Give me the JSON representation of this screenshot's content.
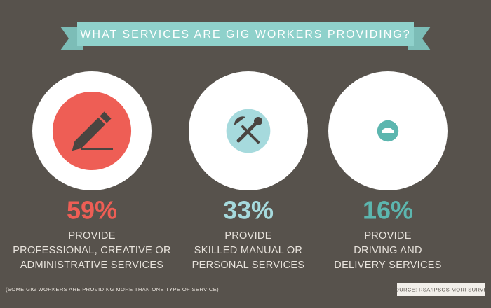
{
  "chart_data": {
    "type": "bubble",
    "title": "WHAT SERVICES ARE GIG WORKERS PROVIDING?",
    "categories": [
      [
        "PROVIDE",
        "PROFESSIONAL, CREATIVE OR",
        "ADMINISTRATIVE SERVICES"
      ],
      [
        "PROVIDE",
        "SKILLED MANUAL OR",
        "PERSONAL SERVICES"
      ],
      [
        "PROVIDE",
        "DRIVING AND",
        "DELIVERY SERVICES"
      ]
    ],
    "values": [
      59,
      33,
      16
    ],
    "value_labels": [
      "59%",
      "33%",
      "16%"
    ],
    "colors": [
      "#ee5e55",
      "#a6dadd",
      "#5cb6af"
    ],
    "note": "(SOME GIG WORKERS ARE PROVIDING MORE THAN ONE TYPE OF SERVICE)",
    "source": "SOURCE: RSA/IPSOS MORI SURVEY"
  }
}
